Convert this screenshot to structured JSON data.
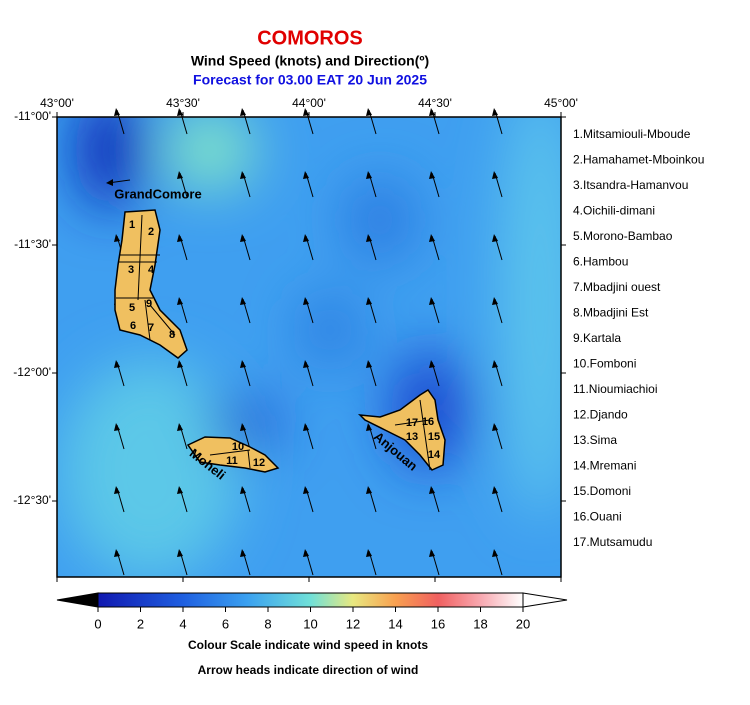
{
  "header": {
    "title": "COMOROS",
    "subtitle": "Wind Speed (knots) and Direction(º)",
    "forecast": "Forecast for  03.00 EAT 20 Jun 2025"
  },
  "axes": {
    "x_labels": [
      "43°00'",
      "43°30'",
      "44°00'",
      "44°30'",
      "45°00'"
    ],
    "y_labels": [
      "-11°00'",
      "-11°30'",
      "-12°00'",
      "-12°30'"
    ]
  },
  "islands": [
    "GrandComore",
    "Moheli",
    "Anjouan"
  ],
  "island_numbers": [
    "1",
    "2",
    "3",
    "4",
    "5",
    "6",
    "7",
    "8",
    "9",
    "10",
    "11",
    "12",
    "13",
    "14",
    "15",
    "16",
    "17"
  ],
  "legend": {
    "items": [
      "1.Mitsamiouli-Mboude",
      "2.Hamahamet-Mboinkou",
      "3.Itsandra-Hamanvou",
      "4.Oichili-dimani",
      "5.Morono-Bambao",
      "6.Hambou",
      "7.Mbadjini ouest",
      "8.Mbadjini Est",
      "9.Kartala",
      "10.Fomboni",
      "11.Nioumiachioi",
      "12.Djando",
      "13.Sima",
      "14.Mremani",
      "15.Domoni",
      "16.Ouani",
      "17.Mutsamudu"
    ]
  },
  "colorbar": {
    "ticks": [
      0,
      2,
      4,
      6,
      8,
      10,
      12,
      14,
      16,
      18,
      20
    ],
    "caption": "Colour Scale indicate wind speed in knots",
    "note": "Arrow heads indicate direction of wind"
  }
}
